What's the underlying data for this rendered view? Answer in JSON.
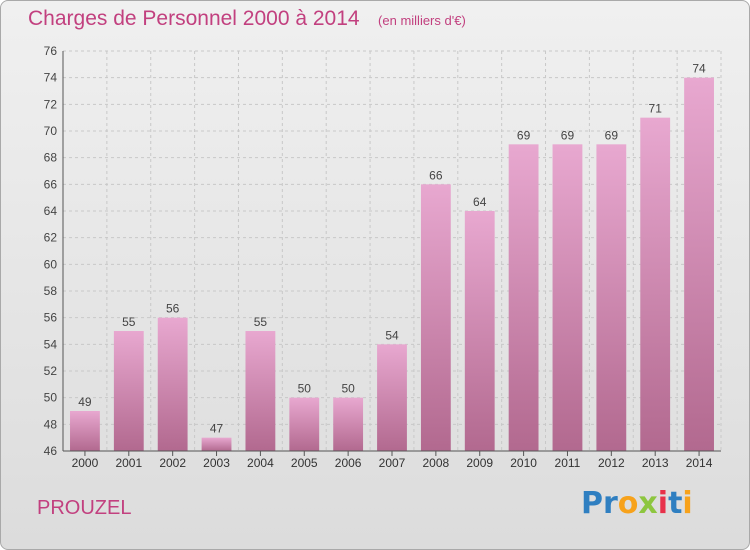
{
  "header": {
    "title": "Charges de Personnel 2000 à 2014",
    "unit": "(en milliers d'€)"
  },
  "footer": {
    "commune": "PROUZEL",
    "logo_text": "Proxiti",
    "logo_letters": [
      {
        "char": "P",
        "color": "#2f7fc1"
      },
      {
        "char": "r",
        "color": "#2f7fc1"
      },
      {
        "char": "o",
        "color": "#f7a21b"
      },
      {
        "char": "x",
        "color": "#8dc63f"
      },
      {
        "char": "i",
        "color": "#e8314a"
      },
      {
        "char": "t",
        "color": "#2f7fc1"
      },
      {
        "char": "i",
        "color": "#f7a21b"
      }
    ]
  },
  "colors": {
    "bar_top": "#e8a8d0",
    "bar_bottom": "#b2698f",
    "text_accent": "#c2407f"
  },
  "chart_data": {
    "type": "bar",
    "categories": [
      "2000",
      "2001",
      "2002",
      "2003",
      "2004",
      "2005",
      "2006",
      "2007",
      "2008",
      "2009",
      "2010",
      "2011",
      "2012",
      "2013",
      "2014"
    ],
    "values": [
      49,
      55,
      56,
      47,
      55,
      50,
      50,
      54,
      66,
      64,
      69,
      69,
      69,
      71,
      74
    ],
    "title": "Charges de Personnel 2000 à 2014",
    "ylim": [
      46,
      76
    ],
    "yticks": [
      46,
      48,
      50,
      52,
      54,
      56,
      58,
      60,
      62,
      64,
      66,
      68,
      70,
      72,
      74,
      76
    ],
    "grid": true
  }
}
